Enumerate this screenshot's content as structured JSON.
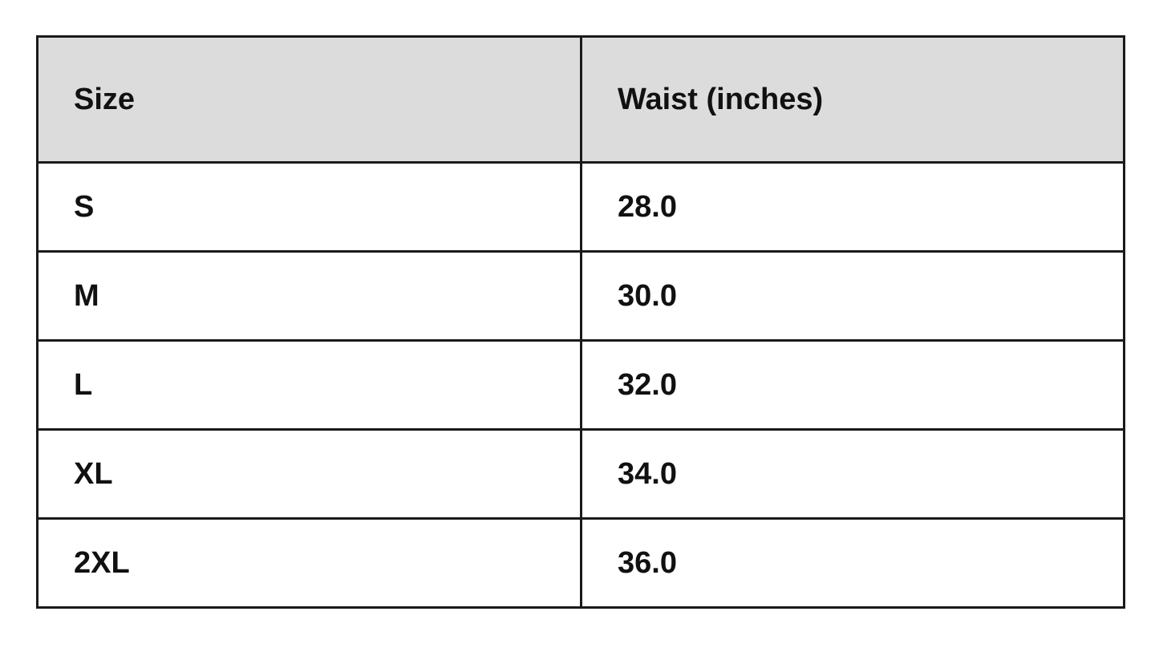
{
  "table": {
    "headers": [
      "Size",
      "Waist (inches)"
    ],
    "rows": [
      [
        "S",
        "28.0"
      ],
      [
        "M",
        "30.0"
      ],
      [
        "L",
        "32.0"
      ],
      [
        "XL",
        "34.0"
      ],
      [
        "2XL",
        "36.0"
      ]
    ]
  },
  "colors": {
    "header_bg": "#dcdcdc",
    "border": "#1a1a1a"
  }
}
